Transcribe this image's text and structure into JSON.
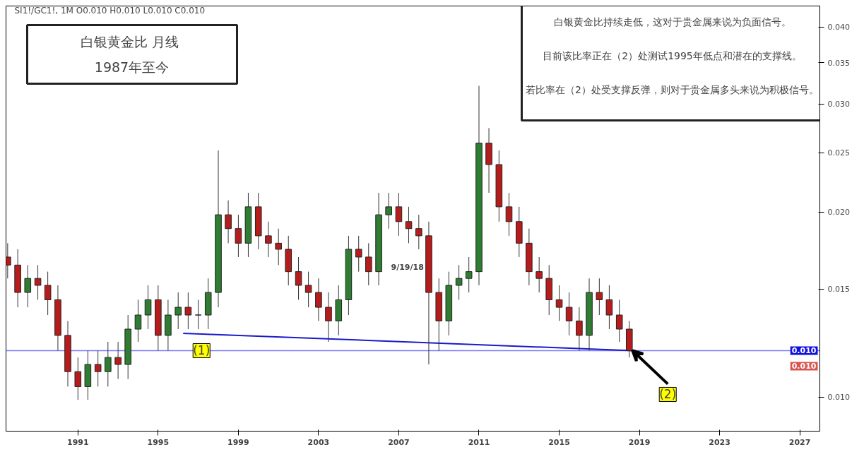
{
  "chart_data": {
    "type": "candlestick",
    "title": "白银黄金比  月线",
    "subtitle": "1987年至今",
    "x": [
      "1987-07",
      "1988-01",
      "1988-07",
      "1989-01",
      "1989-07",
      "1990-01",
      "1990-07",
      "1991-01",
      "1991-07",
      "1992-01",
      "1992-07",
      "1993-01",
      "1993-07",
      "1994-01",
      "1994-07",
      "1995-01",
      "1995-07",
      "1996-01",
      "1996-07",
      "1997-01",
      "1997-07",
      "1998-01",
      "1998-07",
      "1999-01",
      "1999-07",
      "2000-01",
      "2000-07",
      "2001-01",
      "2001-07",
      "2002-01",
      "2002-07",
      "2003-01",
      "2003-07",
      "2004-01",
      "2004-07",
      "2005-01",
      "2005-07",
      "2006-01",
      "2006-07",
      "2007-01",
      "2007-07",
      "2008-01",
      "2008-07",
      "2009-01",
      "2009-07",
      "2010-01",
      "2010-07",
      "2011-01",
      "2011-07",
      "2012-01",
      "2012-07",
      "2013-01",
      "2013-07",
      "2014-01",
      "2014-07",
      "2015-01",
      "2015-07",
      "2016-01",
      "2016-07",
      "2017-01",
      "2017-07",
      "2018-01",
      "2018-07"
    ],
    "ohlc": [
      [
        0.0169,
        0.0178,
        0.0156,
        0.0164
      ],
      [
        0.0164,
        0.0174,
        0.014,
        0.0148
      ],
      [
        0.0148,
        0.0164,
        0.014,
        0.0156
      ],
      [
        0.0156,
        0.0164,
        0.0144,
        0.0152
      ],
      [
        0.0152,
        0.016,
        0.0136,
        0.0144
      ],
      [
        0.0144,
        0.0152,
        0.0119,
        0.0126
      ],
      [
        0.0126,
        0.0133,
        0.0104,
        0.011
      ],
      [
        0.011,
        0.0116,
        0.0099,
        0.0104
      ],
      [
        0.0104,
        0.0119,
        0.0099,
        0.0113
      ],
      [
        0.0113,
        0.0119,
        0.0104,
        0.011
      ],
      [
        0.011,
        0.0123,
        0.0104,
        0.0116
      ],
      [
        0.0116,
        0.0123,
        0.0107,
        0.0113
      ],
      [
        0.0113,
        0.0136,
        0.0107,
        0.0129
      ],
      [
        0.0129,
        0.0144,
        0.0123,
        0.0136
      ],
      [
        0.0136,
        0.0152,
        0.0129,
        0.0144
      ],
      [
        0.0144,
        0.0152,
        0.0119,
        0.0126
      ],
      [
        0.0126,
        0.0144,
        0.0119,
        0.0136
      ],
      [
        0.0136,
        0.0148,
        0.0129,
        0.014
      ],
      [
        0.014,
        0.0148,
        0.0129,
        0.0136
      ],
      [
        0.0136,
        0.0144,
        0.0129,
        0.0136
      ],
      [
        0.0136,
        0.0156,
        0.0129,
        0.0148
      ],
      [
        0.0148,
        0.0252,
        0.014,
        0.0198
      ],
      [
        0.0198,
        0.0209,
        0.0178,
        0.0188
      ],
      [
        0.0188,
        0.0198,
        0.0169,
        0.0178
      ],
      [
        0.0178,
        0.0215,
        0.0169,
        0.0204
      ],
      [
        0.0204,
        0.0215,
        0.0174,
        0.0183
      ],
      [
        0.0183,
        0.0193,
        0.0169,
        0.0178
      ],
      [
        0.0178,
        0.0188,
        0.0164,
        0.0174
      ],
      [
        0.0174,
        0.0183,
        0.0152,
        0.016
      ],
      [
        0.016,
        0.0169,
        0.0144,
        0.0152
      ],
      [
        0.0152,
        0.016,
        0.014,
        0.0148
      ],
      [
        0.0148,
        0.0156,
        0.0133,
        0.014
      ],
      [
        0.014,
        0.0148,
        0.0123,
        0.0133
      ],
      [
        0.0133,
        0.0152,
        0.0126,
        0.0144
      ],
      [
        0.0144,
        0.0183,
        0.0136,
        0.0174
      ],
      [
        0.0174,
        0.0183,
        0.016,
        0.0169
      ],
      [
        0.0169,
        0.0178,
        0.0152,
        0.016
      ],
      [
        0.016,
        0.0215,
        0.0152,
        0.0198
      ],
      [
        0.0198,
        0.0215,
        0.0188,
        0.0204
      ],
      [
        0.0204,
        0.0215,
        0.0183,
        0.0193
      ],
      [
        0.0193,
        0.0204,
        0.0178,
        0.0188
      ],
      [
        0.0188,
        0.0198,
        0.0174,
        0.0183
      ],
      [
        0.0183,
        0.0193,
        0.0113,
        0.0148
      ],
      [
        0.0148,
        0.0156,
        0.0119,
        0.0133
      ],
      [
        0.0133,
        0.016,
        0.0126,
        0.0152
      ],
      [
        0.0152,
        0.0164,
        0.0144,
        0.0156
      ],
      [
        0.0156,
        0.0169,
        0.0148,
        0.016
      ],
      [
        0.016,
        0.0321,
        0.0152,
        0.0259
      ],
      [
        0.0259,
        0.0274,
        0.0215,
        0.0239
      ],
      [
        0.0239,
        0.0252,
        0.0193,
        0.0204
      ],
      [
        0.0204,
        0.0215,
        0.0183,
        0.0193
      ],
      [
        0.0193,
        0.0204,
        0.0169,
        0.0178
      ],
      [
        0.0178,
        0.0188,
        0.0152,
        0.016
      ],
      [
        0.016,
        0.0169,
        0.0148,
        0.0156
      ],
      [
        0.0156,
        0.0164,
        0.0136,
        0.0144
      ],
      [
        0.0144,
        0.0152,
        0.0133,
        0.014
      ],
      [
        0.014,
        0.0148,
        0.0126,
        0.0133
      ],
      [
        0.0133,
        0.014,
        0.0119,
        0.0126
      ],
      [
        0.0126,
        0.0156,
        0.0119,
        0.0148
      ],
      [
        0.0148,
        0.0156,
        0.0136,
        0.0144
      ],
      [
        0.0144,
        0.0152,
        0.0129,
        0.0136
      ],
      [
        0.0136,
        0.0144,
        0.0123,
        0.0129
      ],
      [
        0.0129,
        0.0133,
        0.0116,
        0.0119
      ]
    ],
    "series": [
      {
        "type": "line",
        "x": [
          "1996-04",
          "2018-09"
        ],
        "values": [
          0.0127,
          0.0119
        ],
        "color": "#1a1acc"
      }
    ],
    "ref_lines": [
      {
        "axis": "y",
        "value": 0.0119,
        "color": "#7b7bff"
      }
    ],
    "annotations": [
      "SI1!/GC1!, 1M  O0.010 H0.010 L0.010 C0.010",
      "白银黄金比持续走低，这对于贵金属来说为负面信号。",
      "目前该比率正在（2）处测试1995年低点和潜在的支撑线。",
      "若比率在（2）处受支撑反弹，则对于贵金属多头来说为积极信号。",
      "9/19/18",
      {
        "text": "(1)",
        "x": "1997-03",
        "y": 0.0119
      },
      {
        "text": "(2)",
        "x": "2020-06",
        "y": 0.0101
      },
      "0.010",
      "0.010"
    ],
    "log": "y",
    "grid": false,
    "xlim": [
      "1987-06",
      "2028-01"
    ],
    "xticks": [
      {
        "value": "1991",
        "label": "1991"
      },
      {
        "value": "1995",
        "label": "1995"
      },
      {
        "value": "1999",
        "label": "1999"
      },
      {
        "value": "2003",
        "label": "2003"
      },
      {
        "value": "2007",
        "label": "2007"
      },
      {
        "value": "2011",
        "label": "2011"
      },
      {
        "value": "2015",
        "label": "2015"
      },
      {
        "value": "2019",
        "label": "2019"
      },
      {
        "value": "2023",
        "label": "2023"
      },
      {
        "value": "2027",
        "label": "2027"
      }
    ],
    "ylim": [
      0.0088,
      0.0433
    ],
    "yticks": [
      {
        "value": 0.01,
        "label": "0.010"
      },
      {
        "value": 0.015,
        "label": "0.015"
      },
      {
        "value": 0.02,
        "label": "0.020"
      },
      {
        "value": 0.025,
        "label": "0.025"
      },
      {
        "value": 0.03,
        "label": "0.030"
      },
      {
        "value": 0.035,
        "label": "0.035"
      },
      {
        "value": 0.04,
        "label": "0.040"
      }
    ]
  }
}
